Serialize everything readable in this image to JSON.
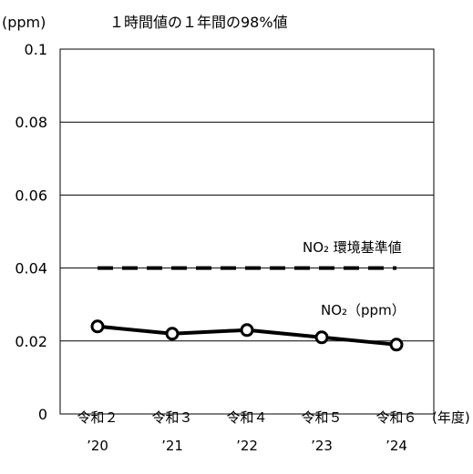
{
  "chart_data": {
    "type": "line",
    "title": "１時間値の１年間の98%値",
    "ylabel": "(ppm)",
    "xlabel": "(年度)",
    "ylim": [
      0,
      0.1
    ],
    "yticks": [
      "0",
      "0.02",
      "0.04",
      "0.06",
      "0.08",
      "0.1"
    ],
    "ytick_values": [
      0,
      0.02,
      0.04,
      0.06,
      0.08,
      0.1
    ],
    "categories": [
      "令和２",
      "令和３",
      "令和４",
      "令和５",
      "令和６"
    ],
    "categories_year": [
      "’20",
      "’21",
      "’22",
      "’23",
      "’24"
    ],
    "grid": true,
    "series": [
      {
        "name": "NO₂（ppm）",
        "style": "solid-with-markers",
        "color": "#000000",
        "values": [
          0.024,
          0.022,
          0.023,
          0.021,
          0.019
        ]
      },
      {
        "name": "NO₂ 環境基準値",
        "style": "dashed",
        "color": "#000000",
        "values": [
          0.04,
          0.04,
          0.04,
          0.04,
          0.04
        ]
      }
    ]
  }
}
